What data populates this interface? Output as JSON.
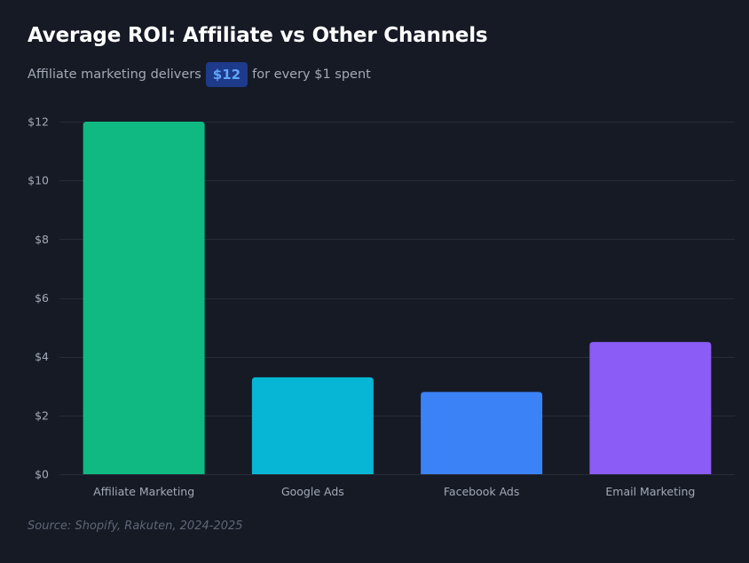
{
  "title": "Average ROI: Affiliate vs Other Channels",
  "subtitle": {
    "before": "Affiliate marketing delivers",
    "highlight": "$12",
    "after": "for every $1 spent"
  },
  "source": "Source: Shopify, Rakuten, 2024-2025",
  "colors": {
    "background": "#151a25",
    "grid": "#262c38",
    "tick_text": "#a3a9b6",
    "highlight_bg": "#1e3a8a",
    "highlight_text": "#60a5fa"
  },
  "chart_data": {
    "type": "bar",
    "categories": [
      "Affiliate Marketing",
      "Google Ads",
      "Facebook Ads",
      "Email Marketing"
    ],
    "values": [
      12,
      3.3,
      2.8,
      4.5
    ],
    "colors": [
      "#10b981",
      "#06b6d4",
      "#3b82f6",
      "#8b5cf6"
    ],
    "ylim": [
      0,
      12
    ],
    "yticks": [
      0,
      2,
      4,
      6,
      8,
      10,
      12
    ],
    "ytick_labels": [
      "$0",
      "$2",
      "$4",
      "$6",
      "$8",
      "$10",
      "$12"
    ],
    "grid": true,
    "legend": "none"
  }
}
